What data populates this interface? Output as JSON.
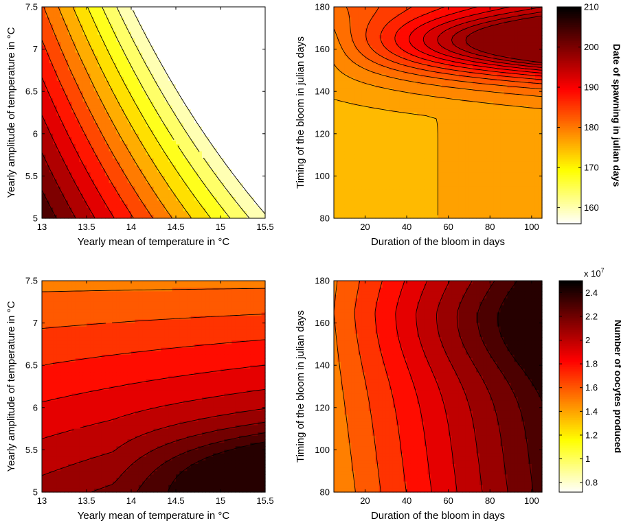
{
  "chart_data": [
    {
      "id": "p1",
      "type": "contour",
      "xlabel": "Yearly mean of temperature in °C",
      "ylabel": "Yearly amplitude of temperature in °C",
      "xlim": [
        13,
        15.5
      ],
      "ylim": [
        5,
        7.5
      ],
      "xticks": [
        "13",
        "13.5",
        "14",
        "14.5",
        "15",
        "15.5"
      ],
      "yticks": [
        "5",
        "5.5",
        "6",
        "6.5",
        "7",
        "7.5"
      ],
      "value_range": [
        156,
        210
      ],
      "z_function": "sum of per-axis estimates (spawning date in julian days)",
      "z_description": "Date of spawning decreases with yearly mean temperature and increases with lower amplitude; highest at low mean/low amplitude corner (~210), lowest at high mean/high amplitude corner (~157)",
      "levels": [
        158,
        162,
        166,
        170,
        174,
        178,
        182,
        186,
        190,
        194,
        198,
        202,
        206
      ]
    },
    {
      "id": "p2",
      "type": "contour",
      "xlabel": "Duration of the bloom in days",
      "ylabel": "Timing of the bloom in julian days",
      "xlim": [
        5,
        105
      ],
      "ylim": [
        80,
        180
      ],
      "xticks": [
        "20",
        "40",
        "60",
        "80",
        "100"
      ],
      "yticks": [
        "80",
        "100",
        "120",
        "140",
        "160",
        "180"
      ],
      "value_range": [
        156,
        210
      ],
      "z_description": "Date of spawning near 175 for early blooms, rising to about 200 for late and long blooms around timing 160",
      "levels": [
        176,
        178,
        180,
        182,
        184,
        186,
        188,
        190,
        192,
        194,
        196,
        198
      ]
    },
    {
      "id": "p3",
      "type": "contour",
      "xlabel": "Yearly mean of temperature in °C",
      "ylabel": "Yearly amplitude of temperature in °C",
      "xlim": [
        13,
        15.5
      ],
      "ylim": [
        5,
        7.5
      ],
      "xticks": [
        "13",
        "13.5",
        "14",
        "14.5",
        "15",
        "15.5"
      ],
      "yticks": [
        "5",
        "5.5",
        "6",
        "6.5",
        "7",
        "7.5"
      ],
      "value_range": [
        0.72,
        2.5
      ],
      "z_description": "Number of oocytes produced (x10^7); about 1.5 at top, rising to about 2.4 at bottom-right",
      "levels": [
        1.55,
        1.65,
        1.75,
        1.85,
        1.95,
        2.05,
        2.15,
        2.25,
        2.35
      ]
    },
    {
      "id": "p4",
      "type": "contour",
      "xlabel": "Duration of the bloom in days",
      "ylabel": "Timing of the bloom in julian days",
      "xlim": [
        5,
        105
      ],
      "ylim": [
        80,
        180
      ],
      "xticks": [
        "20",
        "40",
        "60",
        "80",
        "100"
      ],
      "yticks": [
        "80",
        "100",
        "120",
        "140",
        "160",
        "180"
      ],
      "value_range": [
        0.72,
        2.5
      ],
      "z_description": "Number of oocytes produced (x10^7); increases with bloom duration, peak about 2.45 near duration 100, timing 160",
      "levels": [
        1.55,
        1.65,
        1.75,
        1.85,
        1.95,
        2.05,
        2.15,
        2.25,
        2.35
      ]
    }
  ],
  "colorbars": [
    {
      "id": "cb1",
      "label": "Date of spawning in julian days",
      "range": [
        156,
        210
      ],
      "ticks": [
        "160",
        "170",
        "180",
        "190",
        "200",
        "210"
      ],
      "tick_values": [
        160,
        170,
        180,
        190,
        200,
        210
      ],
      "multiplier": ""
    },
    {
      "id": "cb2",
      "label": "Number of oocytes produced",
      "range": [
        0.72,
        2.5
      ],
      "ticks": [
        "0.8",
        "1",
        "1.2",
        "1.4",
        "1.6",
        "1.8",
        "2",
        "2.2",
        "2.4"
      ],
      "tick_values": [
        0.8,
        1.0,
        1.2,
        1.4,
        1.6,
        1.8,
        2.0,
        2.2,
        2.4
      ],
      "multiplier": "x 10"
    }
  ],
  "colormap": "hot (reversed): white → yellow → orange → red → dark red → black"
}
